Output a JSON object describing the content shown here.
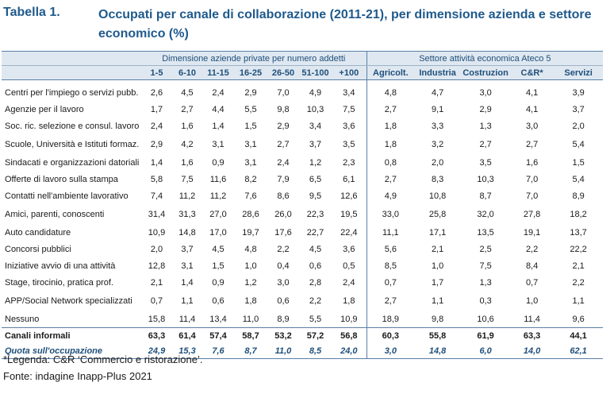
{
  "title": {
    "label": "Tabella 1.",
    "text": "Occupati per canale di collaborazione (2011-21), per dimensione azienda e settore economico (%)"
  },
  "table": {
    "group_size": "Dimensione aziende private per numero addetti",
    "group_sector": "Settore attività economica Ateco 5",
    "columns": [
      "1-5",
      "6-10",
      "11-15",
      "16-25",
      "26-50",
      "51-100",
      "+100",
      "Agricolt.",
      "Industria",
      "Costruzion",
      "C&R*",
      "Servizi"
    ],
    "rows": [
      {
        "label": "Centri per l'impiego o servizi pubb.",
        "values": [
          "2,6",
          "4,5",
          "2,4",
          "2,9",
          "7,0",
          "4,9",
          "3,4",
          "4,8",
          "4,7",
          "3,0",
          "4,1",
          "3,9"
        ]
      },
      {
        "label": "Agenzie per il lavoro",
        "values": [
          "1,7",
          "2,7",
          "4,4",
          "5,5",
          "9,8",
          "10,3",
          "7,5",
          "2,7",
          "9,1",
          "2,9",
          "4,1",
          "3,7"
        ]
      },
      {
        "label": "Soc. ric. selezione e consul. lavoro",
        "values": [
          "2,4",
          "1,6",
          "1,4",
          "1,5",
          "2,9",
          "3,4",
          "3,6",
          "1,8",
          "3,3",
          "1,3",
          "3,0",
          "2,0"
        ]
      },
      {
        "label": "Scuole, Università e Istituti formaz.",
        "values": [
          "2,9",
          "4,2",
          "3,1",
          "3,1",
          "2,7",
          "3,7",
          "3,5",
          "1,8",
          "3,2",
          "2,7",
          "2,7",
          "5,4"
        ]
      },
      {
        "label": "Sindacati e organizzazioni datoriali",
        "values": [
          "1,4",
          "1,6",
          "0,9",
          "3,1",
          "2,4",
          "1,2",
          "2,3",
          "0,8",
          "2,0",
          "3,5",
          "1,6",
          "1,5"
        ]
      },
      {
        "label": "Offerte di lavoro sulla stampa",
        "values": [
          "5,8",
          "7,5",
          "11,6",
          "8,2",
          "7,9",
          "6,5",
          "6,1",
          "2,7",
          "8,3",
          "10,3",
          "7,0",
          "5,4"
        ]
      },
      {
        "label": "Contatti nell'ambiente lavorativo",
        "values": [
          "7,4",
          "11,2",
          "11,2",
          "7,6",
          "8,6",
          "9,5",
          "12,6",
          "4,9",
          "10,8",
          "8,7",
          "7,0",
          "8,9"
        ]
      },
      {
        "label": "Amici, parenti, conoscenti",
        "values": [
          "31,4",
          "31,3",
          "27,0",
          "28,6",
          "26,0",
          "22,3",
          "19,5",
          "33,0",
          "25,8",
          "32,0",
          "27,8",
          "18,2"
        ]
      },
      {
        "label": "Auto candidature",
        "values": [
          "10,9",
          "14,8",
          "17,0",
          "19,7",
          "17,6",
          "22,7",
          "22,4",
          "11,1",
          "17,1",
          "13,5",
          "19,1",
          "13,7"
        ]
      },
      {
        "label": "Concorsi pubblici",
        "values": [
          "2,0",
          "3,7",
          "4,5",
          "4,8",
          "2,2",
          "4,5",
          "3,6",
          "5,6",
          "2,1",
          "2,5",
          "2,2",
          "22,2"
        ]
      },
      {
        "label": "Iniziative avvio di una attività",
        "values": [
          "12,8",
          "3,1",
          "1,5",
          "1,0",
          "0,4",
          "0,6",
          "0,5",
          "8,5",
          "1,0",
          "7,5",
          "8,4",
          "2,1"
        ]
      },
      {
        "label": "Stage, tirocinio, pratica prof.",
        "values": [
          "2,1",
          "1,4",
          "0,9",
          "1,2",
          "3,0",
          "2,8",
          "2,4",
          "0,7",
          "1,7",
          "1,3",
          "0,7",
          "2,2"
        ]
      },
      {
        "label": "APP/Social Network specializzati",
        "values": [
          "0,7",
          "1,1",
          "0,6",
          "1,8",
          "0,6",
          "2,2",
          "1,8",
          "2,7",
          "1,1",
          "0,3",
          "1,0",
          "1,1"
        ]
      },
      {
        "label": "Nessuno",
        "values": [
          "15,8",
          "11,4",
          "13,4",
          "11,0",
          "8,9",
          "5,5",
          "10,9",
          "18,9",
          "9,8",
          "10,6",
          "11,4",
          "9,6"
        ]
      }
    ],
    "informal": {
      "label": "Canali informali",
      "values": [
        "63,3",
        "61,4",
        "57,4",
        "58,7",
        "53,2",
        "57,2",
        "56,8",
        "60,3",
        "55,8",
        "61,9",
        "63,3",
        "44,1"
      ]
    },
    "quota": {
      "label": "Quota sull'occupazione",
      "values": [
        "24,9",
        "15,3",
        "7,6",
        "8,7",
        "11,0",
        "8,5",
        "24,0",
        "3,0",
        "14,8",
        "6,0",
        "14,0",
        "62,1"
      ]
    }
  },
  "legend": "*Legenda: C&R ‘Commercio e ristorazione’.",
  "source": "Fonte: indagine Inapp-Plus 2021"
}
